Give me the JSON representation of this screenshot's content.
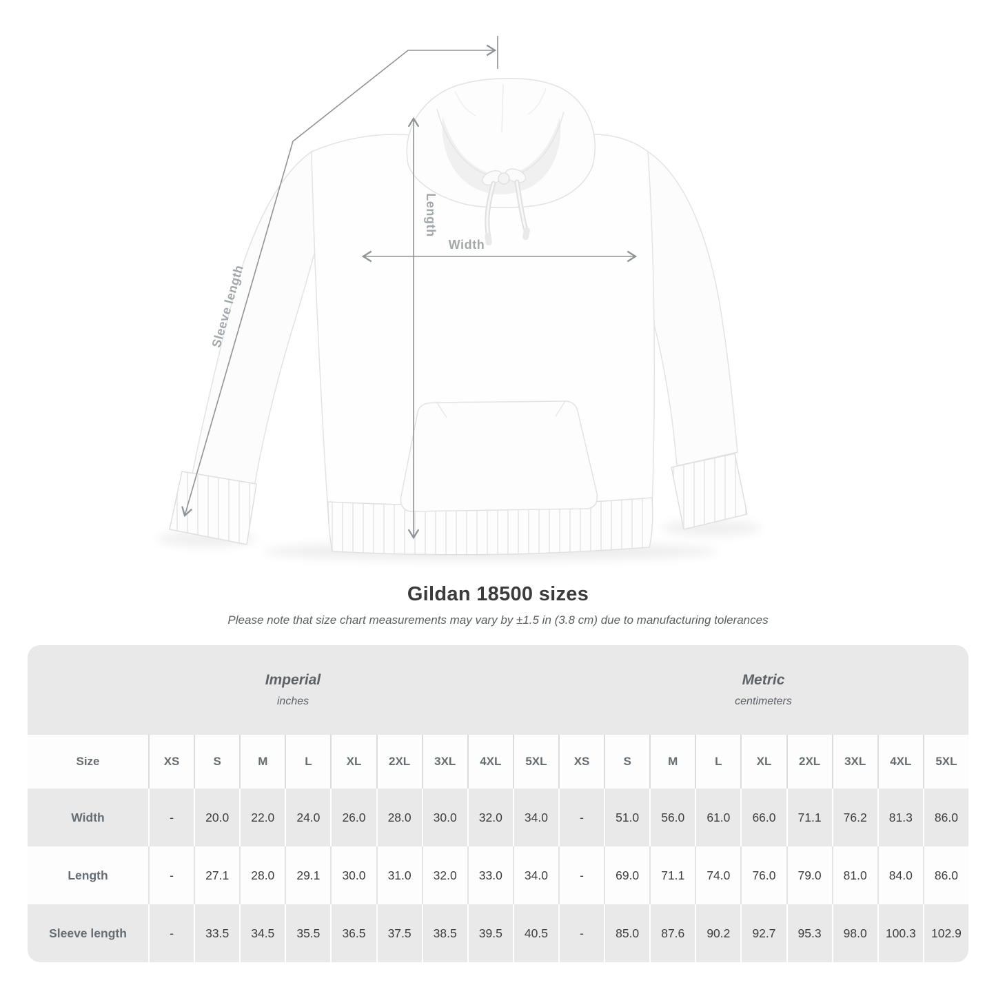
{
  "figure": {
    "labels": {
      "length": "Length",
      "width": "Width",
      "sleeve_length": "Sleeve length"
    }
  },
  "heading": {
    "title": "Gildan 18500 sizes",
    "subtitle": "Please note that size chart measurements may vary by ±1.5 in (3.8 cm) due to manufacturing tolerances"
  },
  "table": {
    "groups": [
      {
        "label": "Imperial",
        "unit": "inches"
      },
      {
        "label": "Metric",
        "unit": "centimeters"
      }
    ],
    "size_header": "Size",
    "sizes": [
      "XS",
      "S",
      "M",
      "L",
      "XL",
      "2XL",
      "3XL",
      "4XL",
      "5XL"
    ],
    "rows": [
      {
        "label": "Width",
        "imperial": [
          "-",
          "20.0",
          "22.0",
          "24.0",
          "26.0",
          "28.0",
          "30.0",
          "32.0",
          "34.0"
        ],
        "metric": [
          "-",
          "51.0",
          "56.0",
          "61.0",
          "66.0",
          "71.1",
          "76.2",
          "81.3",
          "86.0"
        ]
      },
      {
        "label": "Length",
        "imperial": [
          "-",
          "27.1",
          "28.0",
          "29.1",
          "30.0",
          "31.0",
          "32.0",
          "33.0",
          "34.0"
        ],
        "metric": [
          "-",
          "69.0",
          "71.1",
          "74.0",
          "76.0",
          "79.0",
          "81.0",
          "84.0",
          "86.0"
        ]
      },
      {
        "label": "Sleeve length",
        "imperial": [
          "-",
          "33.5",
          "34.5",
          "35.5",
          "36.5",
          "37.5",
          "38.5",
          "39.5",
          "40.5"
        ],
        "metric": [
          "-",
          "85.0",
          "87.6",
          "90.2",
          "92.7",
          "95.3",
          "98.0",
          "100.3",
          "102.9"
        ]
      }
    ]
  },
  "colors": {
    "row_gray": "#e9e9e9",
    "row_white": "#fdfdfd",
    "value_text": "#3d3d3d",
    "header_text": "#666d73",
    "dimension_line": "#8d9398",
    "dimension_label": "#a2a7ac"
  }
}
